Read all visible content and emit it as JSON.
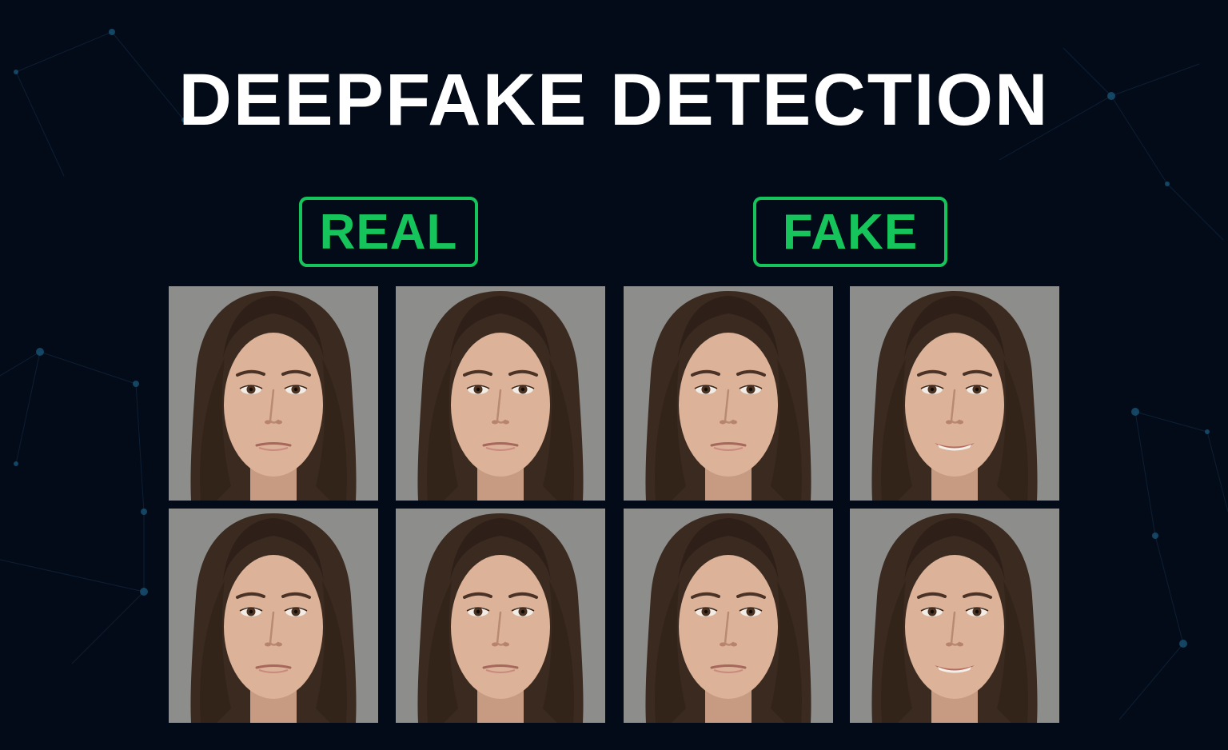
{
  "title": "DEEPFAKE DETECTION",
  "labels": {
    "real": "REAL",
    "fake": "FAKE"
  },
  "colors": {
    "background": "#040b18",
    "accent_green": "#15c45a",
    "title_text": "#ffffff",
    "photo_background": "#8d8d8b"
  },
  "photos": [
    {
      "group": "real",
      "expression": "neutral"
    },
    {
      "group": "real",
      "expression": "neutral"
    },
    {
      "group": "fake",
      "expression": "neutral"
    },
    {
      "group": "fake",
      "expression": "smile"
    },
    {
      "group": "real",
      "expression": "neutral"
    },
    {
      "group": "real",
      "expression": "neutral"
    },
    {
      "group": "fake",
      "expression": "neutral"
    },
    {
      "group": "fake",
      "expression": "smile"
    }
  ]
}
